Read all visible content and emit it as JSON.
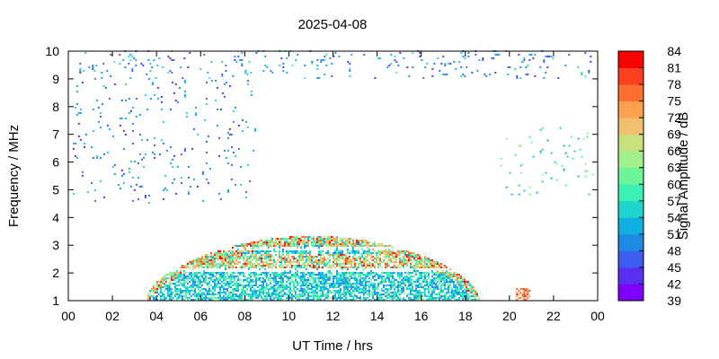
{
  "chart_data": {
    "type": "heatmap",
    "title": "2025-04-08",
    "xlabel": "UT Time / hrs",
    "ylabel": "Frequency / MHz",
    "colorbar_label": "Signal Amplitude / dB",
    "x_ticks": [
      "00",
      "02",
      "04",
      "06",
      "08",
      "10",
      "12",
      "14",
      "16",
      "18",
      "20",
      "22",
      "00"
    ],
    "x_range_hours": [
      0,
      24
    ],
    "y_ticks": [
      "1",
      "2",
      "3",
      "4",
      "5",
      "6",
      "7",
      "8",
      "9",
      "10"
    ],
    "y_range": [
      1,
      10
    ],
    "colorbar_ticks": [
      "84",
      "81",
      "78",
      "75",
      "72",
      "69",
      "66",
      "63",
      "60",
      "57",
      "54",
      "51",
      "48",
      "45",
      "42",
      "39"
    ],
    "color_range": [
      39,
      84
    ],
    "colorbar_colors": [
      "#8000ff",
      "#5a2ff2",
      "#3c5ef0",
      "#1e8ae6",
      "#0fb0e0",
      "#1ed4cc",
      "#3cf0b4",
      "#6ef59a",
      "#a0f08c",
      "#c8e07e",
      "#f0c070",
      "#ffa050",
      "#ff7030",
      "#ff4020",
      "#ff0000"
    ],
    "grid": false,
    "regions": [
      {
        "description_id": "daytime_band",
        "t_start": 3.5,
        "t_end": 18.6,
        "t_peak": 11.5,
        "f_max_at_peak": 3.3,
        "f_min": 1.0,
        "typical_db": 55,
        "peak_db": 80
      },
      {
        "description_id": "top_band",
        "t_start": 0.5,
        "t_end": 23.7,
        "f_min": 9.0,
        "f_max": 10.0,
        "typical_db": 50
      },
      {
        "description_id": "morning_scatter",
        "t_start": 0.2,
        "t_end": 8.5,
        "f_min": 4.5,
        "f_max": 9.0,
        "typical_db": 50
      },
      {
        "description_id": "evening_scatter",
        "t_start": 19.5,
        "t_end": 23.8,
        "f_min": 4.8,
        "f_max": 7.2,
        "typical_db": 58
      },
      {
        "description_id": "evening_spot",
        "t_start": 20.3,
        "t_end": 20.9,
        "f_min": 1.0,
        "f_max": 1.4,
        "typical_db": 76
      }
    ]
  }
}
